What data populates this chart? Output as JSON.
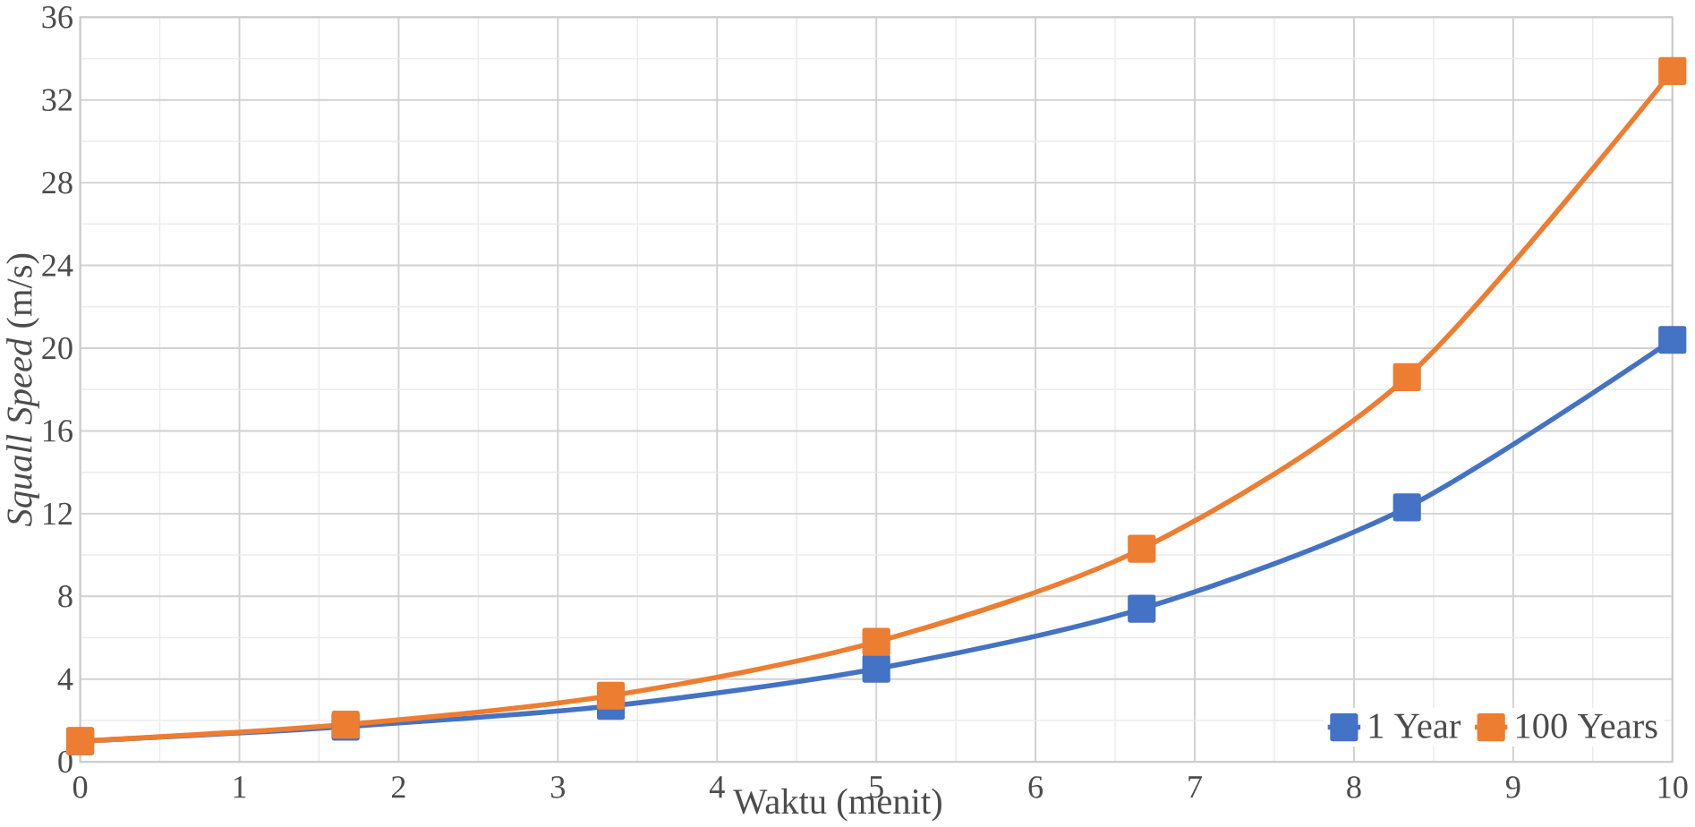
{
  "chart_data": {
    "type": "line",
    "xlabel": "Waktu (menit)",
    "ylabel": "*Squall Speed* (m/s)",
    "x": [
      0,
      1.667,
      3.333,
      5,
      6.667,
      8.333,
      10
    ],
    "series": [
      {
        "name": "1 Year",
        "color": "#4472c4",
        "values": [
          1,
          1.7,
          2.7,
          4.5,
          7.4,
          12.3,
          20.4
        ]
      },
      {
        "name": "100 Years",
        "color": "#ed7d31",
        "values": [
          1,
          1.8,
          3.2,
          5.8,
          10.3,
          18.6,
          33.4
        ]
      }
    ],
    "xlim": [
      0,
      10
    ],
    "xticks": [
      0,
      1,
      2,
      3,
      4,
      5,
      6,
      7,
      8,
      9,
      10
    ],
    "ylim": [
      0,
      36
    ],
    "yticks": [
      0,
      4,
      8,
      12,
      16,
      20,
      24,
      28,
      32,
      36
    ],
    "grid": true,
    "legend": "bottom right",
    "marker": "square",
    "line_style": "solid"
  }
}
